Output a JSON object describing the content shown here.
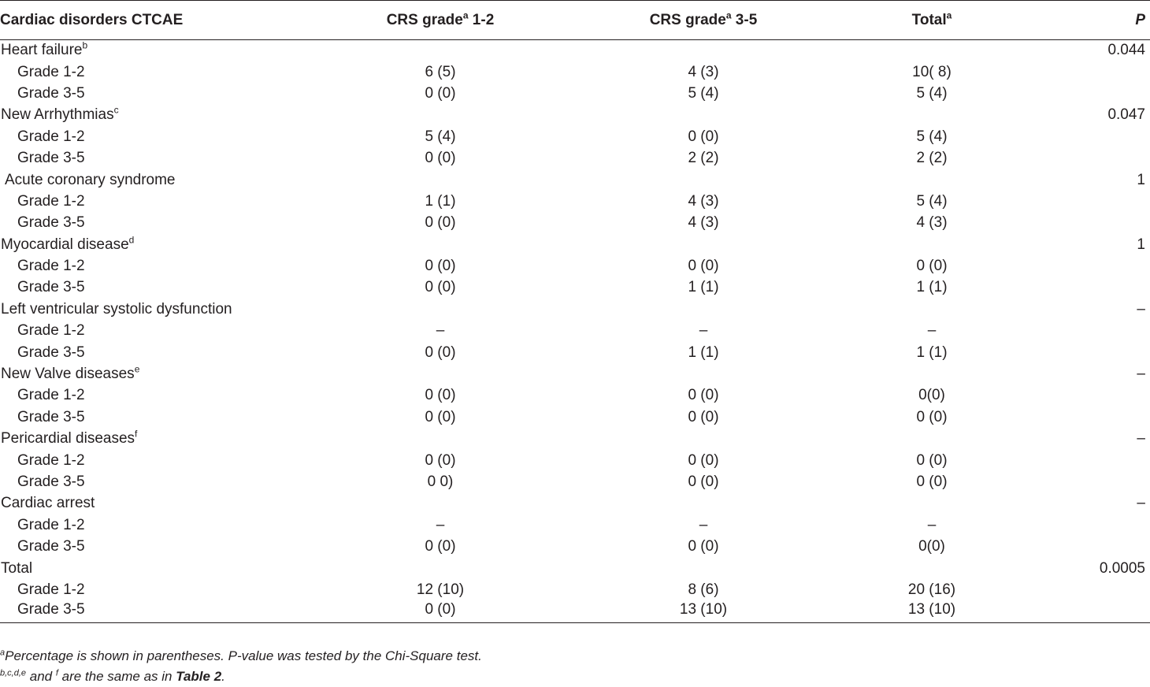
{
  "table": {
    "headers": [
      {
        "text": "Cardiac disorders CTCAE",
        "sup": ""
      },
      {
        "text": "CRS grade",
        "sup": "a",
        "suffix": " 1-2"
      },
      {
        "text": "CRS grade",
        "sup": "a",
        "suffix": " 3-5"
      },
      {
        "text": "Total",
        "sup": "a",
        "suffix": ""
      },
      {
        "text": "P",
        "sup": "",
        "suffix": ""
      }
    ],
    "rows": [
      {
        "type": "cat",
        "label": "Heart failure",
        "sup": "b",
        "c1": "",
        "c2": "",
        "c3": "",
        "p": "0.044"
      },
      {
        "type": "sub",
        "label": "Grade 1-2",
        "sup": "",
        "c1": "6 (5)",
        "c2": "4 (3)",
        "c3": "10( 8)",
        "p": ""
      },
      {
        "type": "sub",
        "label": "Grade 3-5",
        "sup": "",
        "c1": "0 (0)",
        "c2": "5 (4)",
        "c3": "5 (4)",
        "p": ""
      },
      {
        "type": "cat",
        "label": "New Arrhythmias",
        "sup": "c",
        "c1": "",
        "c2": "",
        "c3": "",
        "p": "0.047"
      },
      {
        "type": "sub",
        "label": "Grade 1-2",
        "sup": "",
        "c1": "5 (4)",
        "c2": "0 (0)",
        "c3": "5 (4)",
        "p": ""
      },
      {
        "type": "sub",
        "label": "Grade 3-5",
        "sup": "",
        "c1": "0 (0)",
        "c2": "2 (2)",
        "c3": "2 (2)",
        "p": ""
      },
      {
        "type": "cat-indent",
        "label": "Acute coronary syndrome",
        "sup": "",
        "c1": "",
        "c2": "",
        "c3": "",
        "p": "1"
      },
      {
        "type": "sub",
        "label": "Grade 1-2",
        "sup": "",
        "c1": "1 (1)",
        "c2": "4 (3)",
        "c3": "5 (4)",
        "p": ""
      },
      {
        "type": "sub",
        "label": "Grade 3-5",
        "sup": "",
        "c1": "0 (0)",
        "c2": "4 (3)",
        "c3": "4 (3)",
        "p": ""
      },
      {
        "type": "cat",
        "label": "Myocardial disease",
        "sup": "d",
        "c1": "",
        "c2": "",
        "c3": "",
        "p": "1"
      },
      {
        "type": "sub",
        "label": "Grade 1-2",
        "sup": "",
        "c1": "0 (0)",
        "c2": "0 (0)",
        "c3": "0 (0)",
        "p": ""
      },
      {
        "type": "sub",
        "label": "Grade 3-5",
        "sup": "",
        "c1": "0 (0)",
        "c2": "1 (1)",
        "c3": "1 (1)",
        "p": ""
      },
      {
        "type": "cat",
        "label": "Left ventricular systolic dysfunction",
        "sup": "",
        "c1": "",
        "c2": "",
        "c3": "",
        "p": "–"
      },
      {
        "type": "sub",
        "label": "Grade 1-2",
        "sup": "",
        "c1": "–",
        "c2": "–",
        "c3": "–",
        "p": ""
      },
      {
        "type": "sub",
        "label": "Grade 3-5",
        "sup": "",
        "c1": "0 (0)",
        "c2": "1 (1)",
        "c3": "1 (1)",
        "p": ""
      },
      {
        "type": "cat",
        "label": "New Valve diseases",
        "sup": "e",
        "c1": "",
        "c2": "",
        "c3": "",
        "p": "–"
      },
      {
        "type": "sub",
        "label": "Grade 1-2",
        "sup": "",
        "c1": "0 (0)",
        "c2": "0 (0)",
        "c3": "0(0)",
        "p": ""
      },
      {
        "type": "sub",
        "label": "Grade 3-5",
        "sup": "",
        "c1": "0 (0)",
        "c2": "0 (0)",
        "c3": "0 (0)",
        "p": ""
      },
      {
        "type": "cat",
        "label": "Pericardial diseases",
        "sup": "f",
        "c1": "",
        "c2": "",
        "c3": "",
        "p": "–"
      },
      {
        "type": "sub",
        "label": "Grade 1-2",
        "sup": "",
        "c1": "0 (0)",
        "c2": "0 (0)",
        "c3": "0 (0)",
        "p": ""
      },
      {
        "type": "sub",
        "label": "Grade 3-5",
        "sup": "",
        "c1": "0 0)",
        "c2": "0 (0)",
        "c3": "0 (0)",
        "p": ""
      },
      {
        "type": "cat",
        "label": "Cardiac arrest",
        "sup": "",
        "c1": "",
        "c2": "",
        "c3": "",
        "p": "–"
      },
      {
        "type": "sub",
        "label": "Grade 1-2",
        "sup": "",
        "c1": "–",
        "c2": "–",
        "c3": "–",
        "p": ""
      },
      {
        "type": "sub",
        "label": "Grade 3-5",
        "sup": "",
        "c1": "0 (0)",
        "c2": "0 (0)",
        "c3": "0(0)",
        "p": ""
      },
      {
        "type": "cat",
        "label": "Total",
        "sup": "",
        "c1": "",
        "c2": "",
        "c3": "",
        "p": "0.0005"
      },
      {
        "type": "sub",
        "label": "Grade 1-2",
        "sup": "",
        "c1": "12 (10)",
        "c2": "8 (6)",
        "c3": "20 (16)",
        "p": ""
      },
      {
        "type": "sub",
        "label": "Grade 3-5",
        "sup": "",
        "c1": "0 (0)",
        "c2": "13 (10)",
        "c3": "13 (10)",
        "p": ""
      }
    ]
  },
  "footnotes": {
    "note_a_sup": "a",
    "note_a_text": "Percentage is shown in parentheses. P-value was tested by the Chi-Square test.",
    "note_b_sup1": "b,c,d,e",
    "note_b_mid": " and ",
    "note_b_sup2": "f",
    "note_b_text": " are the same as in ",
    "note_b_ref": "Table 2",
    "note_b_end": "."
  }
}
